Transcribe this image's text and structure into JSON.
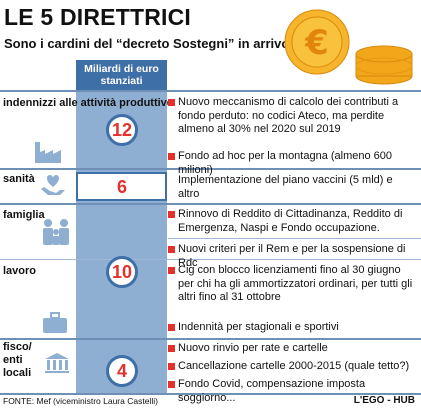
{
  "title": "LE 5 DIRETTRICI",
  "subtitle": "Sono i cardini del “decreto Sostegni” in arrivo",
  "column_header": "Miliardi di euro stanziati",
  "sections": [
    {
      "category": "indennizzi alle attività produttive",
      "icon": "factory-icon",
      "amount": "12",
      "items": [
        "Nuovo meccanismo di calcolo dei contributi a fondo perduto: no codici Ateco, ma perdite almeno al 30% nel 2020 sul 2019",
        "Fondo ad hoc per la montagna (almeno 600 milioni)"
      ]
    },
    {
      "category": "sanità",
      "icon": "heart-hands-icon",
      "amount": "6",
      "items": [
        "Implementazione del piano vaccini (5 mld) e altro"
      ]
    },
    {
      "category": "famiglia",
      "category2": "lavoro",
      "icon": "family-icon",
      "icon2": "briefcase-icon",
      "amount": "10",
      "items": [
        "Rinnovo di Reddito di Cittadinanza, Reddito di Emergenza, Naspi e Fondo occupazione.",
        "Nuovi criteri per il Rem e per la sospensione di Rdc",
        "Cig con blocco licenziamenti fino al 30 giugno per chi ha gli ammortizzatori ordinari, per tutti gli altri fino al 31 ottobre",
        "Indennità per stagionali e sportivi"
      ]
    },
    {
      "category": "fisco/ enti locali",
      "icon": "bank-icon",
      "amount": "4",
      "items": [
        "Nuovo rinvio per rate e cartelle",
        "Cancellazione cartelle 2000-2015 (quale tetto?)",
        "Fondo Covid, compensazione imposta soggiorno..."
      ]
    }
  ],
  "footer": {
    "source": "FONTE: Mef (viceministro Laura Castelli)",
    "credit": "L'EGO - HUB"
  },
  "colors": {
    "accent_blue": "#3f6fa7",
    "bar_blue": "#8fafd2",
    "bullet_red": "#e4312b",
    "number_red": "#e4312b",
    "coin_gold": "#f2a71b"
  }
}
